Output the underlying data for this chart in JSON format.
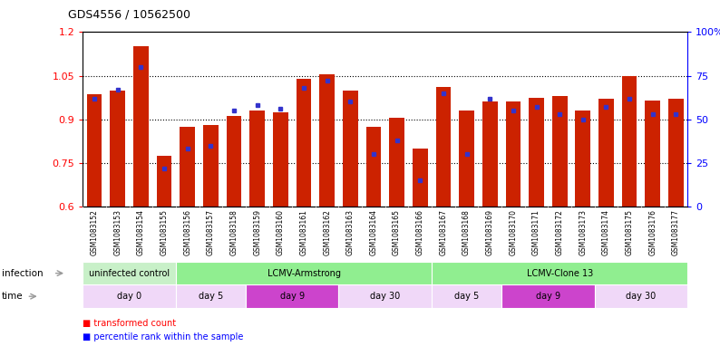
{
  "title": "GDS4556 / 10562500",
  "samples": [
    "GSM1083152",
    "GSM1083153",
    "GSM1083154",
    "GSM1083155",
    "GSM1083156",
    "GSM1083157",
    "GSM1083158",
    "GSM1083159",
    "GSM1083160",
    "GSM1083161",
    "GSM1083162",
    "GSM1083163",
    "GSM1083164",
    "GSM1083165",
    "GSM1083166",
    "GSM1083167",
    "GSM1083168",
    "GSM1083169",
    "GSM1083170",
    "GSM1083171",
    "GSM1083172",
    "GSM1083173",
    "GSM1083174",
    "GSM1083175",
    "GSM1083176",
    "GSM1083177"
  ],
  "transformed_count": [
    0.985,
    1.0,
    1.15,
    0.775,
    0.875,
    0.88,
    0.91,
    0.93,
    0.925,
    1.04,
    1.055,
    1.0,
    0.875,
    0.905,
    0.8,
    1.01,
    0.93,
    0.96,
    0.96,
    0.975,
    0.98,
    0.93,
    0.97,
    1.05,
    0.965,
    0.97
  ],
  "percentile_rank": [
    62,
    67,
    80,
    22,
    33,
    35,
    55,
    58,
    56,
    68,
    72,
    60,
    30,
    38,
    15,
    65,
    30,
    62,
    55,
    57,
    53,
    50,
    57,
    62,
    53,
    53
  ],
  "ylim": [
    0.6,
    1.2
  ],
  "yticks": [
    0.6,
    0.75,
    0.9,
    1.05,
    1.2
  ],
  "ytick_labels_right": [
    "0",
    "25",
    "50",
    "75",
    "100%"
  ],
  "bar_color": "#cc2200",
  "blue_color": "#3333cc",
  "infection_defs": [
    {
      "label": "uninfected control",
      "start": 0,
      "end": 4,
      "color": "#c8f0c8"
    },
    {
      "label": "LCMV-Armstrong",
      "start": 4,
      "end": 15,
      "color": "#90ee90"
    },
    {
      "label": "LCMV-Clone 13",
      "start": 15,
      "end": 26,
      "color": "#90ee90"
    }
  ],
  "time_defs": [
    {
      "label": "day 0",
      "start": 0,
      "end": 4,
      "color": "#f0d8f8"
    },
    {
      "label": "day 5",
      "start": 4,
      "end": 7,
      "color": "#f0d8f8"
    },
    {
      "label": "day 9",
      "start": 7,
      "end": 11,
      "color": "#cc44cc"
    },
    {
      "label": "day 30",
      "start": 11,
      "end": 15,
      "color": "#f0d8f8"
    },
    {
      "label": "day 5",
      "start": 15,
      "end": 18,
      "color": "#f0d8f8"
    },
    {
      "label": "day 9",
      "start": 18,
      "end": 22,
      "color": "#cc44cc"
    },
    {
      "label": "day 30",
      "start": 22,
      "end": 26,
      "color": "#f0d8f8"
    }
  ],
  "xtick_bg": "#d8d8d8"
}
